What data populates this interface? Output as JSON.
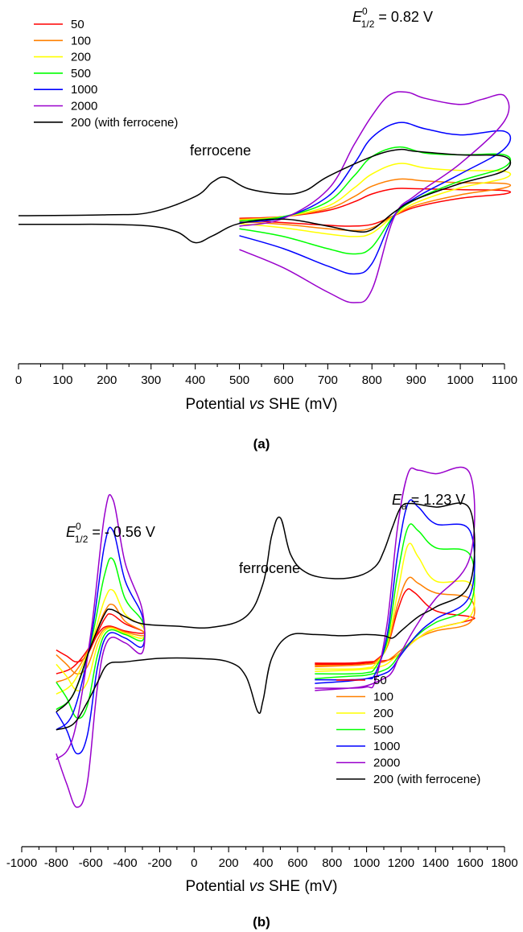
{
  "chart_data": [
    {
      "panel": "(a)",
      "type": "line",
      "xlabel": {
        "pre": "Potential ",
        "italic": "vs",
        "post": " SHE (mV)"
      },
      "xlim": [
        0,
        1100
      ],
      "xticks": [
        0,
        100,
        200,
        300,
        400,
        500,
        600,
        700,
        800,
        900,
        1000,
        1100
      ],
      "annotations": {
        "e_half": {
          "symbol": "E",
          "sup": "0",
          "sub": "1/2",
          "text": " = 0.82 V"
        },
        "ferrocene": "ferrocene"
      },
      "legend_position": "top-left",
      "series": [
        {
          "name": "50",
          "color": "#ff0000",
          "x": [
            500,
            600,
            700,
            760,
            800,
            850,
            900,
            1000,
            1100,
            1100,
            1000,
            900,
            850,
            800,
            750,
            700,
            600,
            500
          ],
          "y": [
            -0.03,
            -0.01,
            0.06,
            0.16,
            0.25,
            0.31,
            0.31,
            0.3,
            0.29,
            0.25,
            0.2,
            0.1,
            0.0,
            -0.1,
            -0.12,
            -0.11,
            -0.08,
            -0.05
          ]
        },
        {
          "name": "100",
          "color": "#ff8000",
          "x": [
            500,
            600,
            700,
            760,
            800,
            860,
            920,
            1000,
            1100,
            1100,
            1000,
            900,
            850,
            800,
            760,
            700,
            600,
            500
          ],
          "y": [
            -0.04,
            -0.01,
            0.08,
            0.22,
            0.34,
            0.42,
            0.4,
            0.38,
            0.37,
            0.32,
            0.24,
            0.12,
            0.0,
            -0.14,
            -0.17,
            -0.15,
            -0.1,
            -0.07
          ]
        },
        {
          "name": "200",
          "color": "#ffff00",
          "x": [
            500,
            600,
            700,
            760,
            800,
            860,
            920,
            1000,
            1100,
            1100,
            1000,
            900,
            850,
            800,
            760,
            700,
            600,
            500
          ],
          "y": [
            -0.05,
            -0.01,
            0.11,
            0.32,
            0.48,
            0.6,
            0.55,
            0.52,
            0.51,
            0.43,
            0.32,
            0.15,
            0.0,
            -0.2,
            -0.24,
            -0.21,
            -0.14,
            -0.09
          ]
        },
        {
          "name": "500",
          "color": "#00ff00",
          "x": [
            500,
            600,
            700,
            760,
            800,
            860,
            920,
            1000,
            1100,
            1100,
            1000,
            900,
            850,
            800,
            760,
            700,
            600,
            500
          ],
          "y": [
            -0.06,
            -0.01,
            0.16,
            0.46,
            0.68,
            0.79,
            0.72,
            0.7,
            0.7,
            0.56,
            0.4,
            0.19,
            0.0,
            -0.36,
            -0.44,
            -0.38,
            -0.24,
            -0.15
          ]
        },
        {
          "name": "1000",
          "color": "#0000ff",
          "x": [
            500,
            600,
            700,
            760,
            800,
            860,
            920,
            1000,
            1100,
            1100,
            1000,
            900,
            850,
            800,
            760,
            700,
            600,
            500
          ],
          "y": [
            -0.08,
            -0.02,
            0.22,
            0.6,
            0.9,
            1.07,
            1.0,
            0.93,
            0.97,
            0.77,
            0.48,
            0.21,
            0.0,
            -0.55,
            -0.67,
            -0.58,
            -0.38,
            -0.23
          ]
        },
        {
          "name": "2000",
          "color": "#9900cc",
          "x": [
            500,
            600,
            700,
            760,
            800,
            840,
            880,
            920,
            1000,
            1050,
            1100,
            1100,
            1000,
            900,
            850,
            800,
            760,
            700,
            600,
            500
          ],
          "y": [
            -0.12,
            -0.03,
            0.3,
            0.82,
            1.15,
            1.39,
            1.42,
            1.35,
            1.28,
            1.34,
            1.38,
            1.09,
            0.6,
            0.24,
            -0.02,
            -0.85,
            -1.0,
            -0.88,
            -0.6,
            -0.39
          ]
        },
        {
          "name": "200 (with ferrocene)",
          "color": "#000000",
          "x": [
            0,
            200,
            300,
            400,
            440,
            470,
            520,
            600,
            650,
            700,
            800,
            860,
            900,
            1000,
            1100,
            1100,
            1000,
            900,
            850,
            800,
            760,
            700,
            600,
            500,
            440,
            400,
            360,
            300,
            200,
            100,
            0
          ],
          "y": [
            0.0,
            0.01,
            0.04,
            0.22,
            0.39,
            0.44,
            0.31,
            0.25,
            0.29,
            0.45,
            0.68,
            0.76,
            0.74,
            0.7,
            0.68,
            0.52,
            0.37,
            0.19,
            0.04,
            -0.16,
            -0.18,
            -0.12,
            -0.04,
            -0.09,
            -0.23,
            -0.31,
            -0.19,
            -0.12,
            -0.1,
            -0.1,
            -0.1
          ]
        }
      ]
    },
    {
      "panel": "(b)",
      "type": "line",
      "xlabel": {
        "pre": "Potential ",
        "italic": "vs",
        "post": " SHE (mV)"
      },
      "xlim": [
        -1000,
        1800
      ],
      "xticks": [
        -1000,
        -800,
        -600,
        -400,
        -200,
        0,
        200,
        400,
        600,
        800,
        1000,
        1200,
        1400,
        1600,
        1800
      ],
      "annotations": {
        "e_half": {
          "symbol": "E",
          "sup": "0",
          "sub": "1/2",
          "text": " = - 0.56 V"
        },
        "e_a": {
          "symbol": "E",
          "sub": "a",
          "text": " = 1.23 V"
        },
        "ferrocene": "ferrocene"
      },
      "legend_position": "bottom-right",
      "series": [
        {
          "name": "50",
          "color": "#ff0000",
          "x": [
            -800,
            -700,
            -600,
            -520,
            -480,
            -400,
            -300,
            -300,
            -400,
            -500,
            -560,
            -620,
            -680,
            -740,
            -800,
            700,
            900,
            1000,
            1050,
            1120,
            1180,
            1230,
            1280,
            1400,
            1600,
            1600,
            1400,
            1300,
            1200,
            1150,
            1100,
            1000,
            900,
            700
          ],
          "y": [
            -0.38,
            -0.32,
            -0.14,
            0.08,
            0.12,
            0.04,
            -0.02,
            -0.04,
            -0.02,
            0.02,
            -0.05,
            -0.22,
            -0.28,
            -0.23,
            -0.18,
            -0.3,
            -0.3,
            -0.29,
            -0.27,
            -0.15,
            0.15,
            0.32,
            0.3,
            0.15,
            0.1,
            0.07,
            0.0,
            -0.08,
            -0.2,
            -0.25,
            -0.27,
            -0.28,
            -0.29,
            -0.29
          ]
        },
        {
          "name": "100",
          "color": "#ff8000",
          "x": [
            -800,
            -700,
            -600,
            -520,
            -470,
            -400,
            -300,
            -300,
            -400,
            -500,
            -560,
            -620,
            -680,
            -740,
            -800,
            700,
            900,
            1000,
            1050,
            1120,
            1180,
            1240,
            1300,
            1400,
            1600,
            1600,
            1400,
            1300,
            1200,
            1150,
            1100,
            1000,
            900,
            700
          ],
          "y": [
            -0.45,
            -0.38,
            -0.14,
            0.14,
            0.2,
            0.06,
            -0.02,
            -0.06,
            -0.03,
            0.01,
            -0.09,
            -0.32,
            -0.38,
            -0.3,
            -0.22,
            -0.31,
            -0.31,
            -0.3,
            -0.28,
            -0.15,
            0.2,
            0.42,
            0.38,
            0.3,
            0.25,
            0.05,
            -0.02,
            -0.08,
            -0.18,
            -0.24,
            -0.28,
            -0.3,
            -0.31,
            -0.32
          ]
        },
        {
          "name": "200",
          "color": "#ffff00",
          "x": [
            -800,
            -700,
            -600,
            -520,
            -470,
            -400,
            -300,
            -300,
            -400,
            -500,
            -560,
            -620,
            -680,
            -740,
            -800,
            700,
            900,
            1000,
            1050,
            1120,
            1180,
            1240,
            1300,
            1400,
            1600,
            1600,
            1400,
            1300,
            1200,
            1150,
            1100,
            1000,
            900,
            700
          ],
          "y": [
            -0.55,
            -0.45,
            -0.14,
            0.24,
            0.32,
            0.12,
            0.02,
            -0.08,
            -0.04,
            0.0,
            -0.14,
            -0.45,
            -0.52,
            -0.4,
            -0.3,
            -0.34,
            -0.34,
            -0.33,
            -0.3,
            -0.13,
            0.3,
            0.7,
            0.6,
            0.4,
            0.38,
            0.1,
            0.0,
            -0.08,
            -0.2,
            -0.26,
            -0.31,
            -0.34,
            -0.35,
            -0.36
          ]
        },
        {
          "name": "500",
          "color": "#00ff00",
          "x": [
            -800,
            -700,
            -600,
            -520,
            -470,
            -400,
            -300,
            -300,
            -400,
            -500,
            -560,
            -620,
            -680,
            -740,
            -800,
            700,
            900,
            1000,
            1050,
            1120,
            1180,
            1240,
            1300,
            1400,
            1600,
            1600,
            1400,
            1300,
            1200,
            1150,
            1100,
            1000,
            900,
            700
          ],
          "y": [
            -0.68,
            -0.55,
            -0.12,
            0.45,
            0.58,
            0.25,
            0.06,
            -0.1,
            -0.05,
            -0.02,
            -0.22,
            -0.65,
            -0.75,
            -0.58,
            -0.45,
            -0.38,
            -0.38,
            -0.37,
            -0.33,
            -0.1,
            0.45,
            0.85,
            0.82,
            0.68,
            0.62,
            0.2,
            0.05,
            -0.05,
            -0.2,
            -0.3,
            -0.35,
            -0.39,
            -0.4,
            -0.42
          ]
        },
        {
          "name": "1000",
          "color": "#0000ff",
          "x": [
            -800,
            -700,
            -600,
            -520,
            -470,
            -400,
            -300,
            -300,
            -400,
            -500,
            -560,
            -620,
            -680,
            -740,
            -800,
            700,
            900,
            1000,
            1050,
            1120,
            1180,
            1240,
            1300,
            1400,
            1600,
            1600,
            1400,
            1300,
            1200,
            1150,
            1100,
            1000,
            900,
            700
          ],
          "y": [
            -0.85,
            -0.7,
            -0.1,
            0.7,
            0.82,
            0.4,
            0.1,
            -0.15,
            -0.08,
            -0.05,
            -0.32,
            -0.9,
            -1.05,
            -0.85,
            -0.7,
            -0.43,
            -0.43,
            -0.42,
            -0.38,
            -0.05,
            0.62,
            1.05,
            1.02,
            0.88,
            0.82,
            0.28,
            0.08,
            -0.04,
            -0.22,
            -0.33,
            -0.38,
            -0.42,
            -0.44,
            -0.46
          ]
        },
        {
          "name": "2000",
          "color": "#9900cc",
          "x": [
            -800,
            -700,
            -600,
            -520,
            -470,
            -400,
            -300,
            -300,
            -400,
            -500,
            -560,
            -620,
            -680,
            -740,
            -800,
            700,
            900,
            1000,
            1050,
            1120,
            1180,
            1240,
            1300,
            1400,
            1600,
            1600,
            1400,
            1300,
            1200,
            1150,
            1100,
            1000,
            900,
            700
          ],
          "y": [
            -1.1,
            -0.9,
            -0.05,
            0.95,
            1.08,
            0.55,
            0.15,
            -0.2,
            -0.12,
            -0.1,
            -0.48,
            -1.3,
            -1.5,
            -1.3,
            -1.05,
            -0.5,
            -0.5,
            -0.49,
            -0.44,
            0.05,
            0.85,
            1.3,
            1.33,
            1.3,
            1.3,
            0.6,
            0.25,
            0.05,
            -0.2,
            -0.36,
            -0.42,
            -0.48,
            -0.5,
            -0.52
          ]
        },
        {
          "name": "200 (with ferrocene)",
          "color": "#000000",
          "x": [
            -800,
            -700,
            -600,
            -520,
            -480,
            -400,
            -300,
            -100,
            100,
            300,
            400,
            450,
            500,
            560,
            650,
            800,
            950,
            1050,
            1100,
            1150,
            1200,
            1260,
            1400,
            1600,
            1600,
            1400,
            1300,
            1200,
            1150,
            1100,
            1000,
            850,
            700,
            550,
            450,
            400,
            370,
            300,
            200,
            0,
            -200,
            -400,
            -500,
            -560,
            -620,
            -700,
            -800
          ],
          "y": [
            -0.7,
            -0.55,
            -0.15,
            0.12,
            0.16,
            0.1,
            0.04,
            0.02,
            0.01,
            0.1,
            0.38,
            0.78,
            0.93,
            0.62,
            0.47,
            0.42,
            0.44,
            0.52,
            0.65,
            0.85,
            1.02,
            1.05,
            1.02,
            1.0,
            0.38,
            0.18,
            0.1,
            -0.02,
            -0.08,
            -0.06,
            -0.05,
            -0.06,
            -0.05,
            -0.06,
            -0.25,
            -0.6,
            -0.7,
            -0.4,
            -0.28,
            -0.25,
            -0.25,
            -0.28,
            -0.3,
            -0.45,
            -0.62,
            -0.8,
            -0.85
          ]
        }
      ]
    }
  ]
}
